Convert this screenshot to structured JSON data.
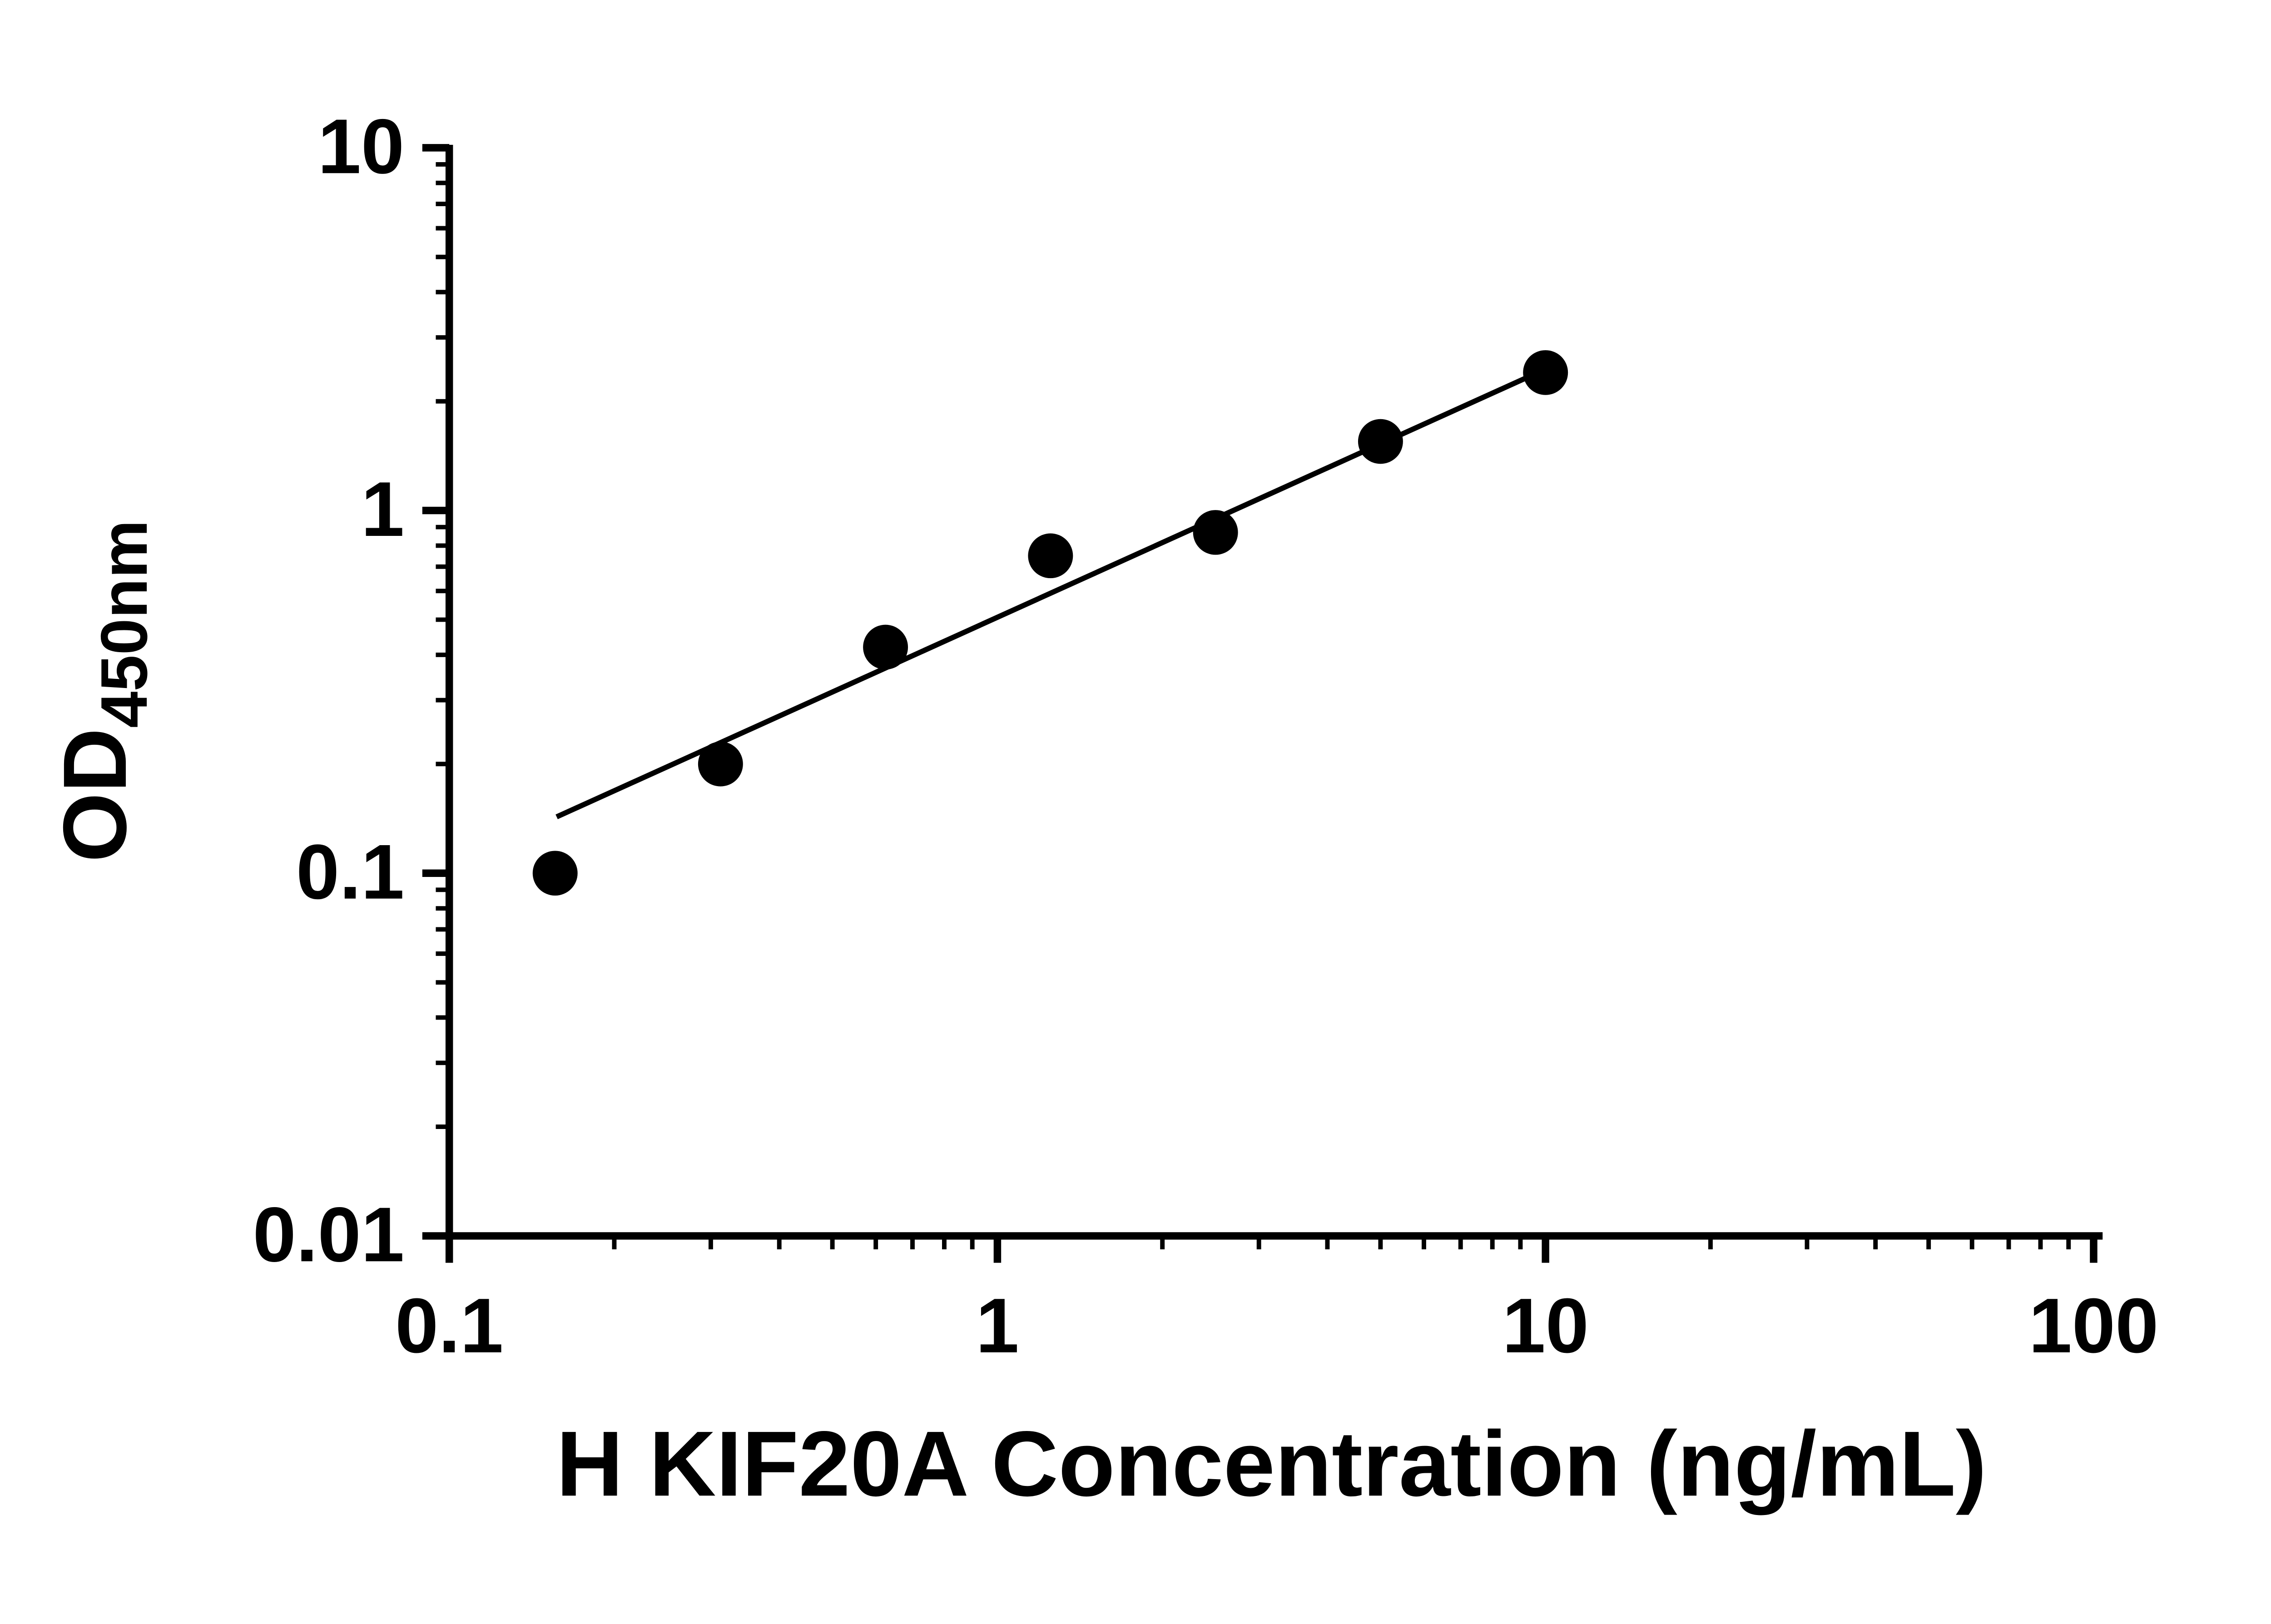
{
  "chart_data": {
    "type": "scatter",
    "title": "",
    "xlabel": "H KIF20A Concentration (ng/mL)",
    "ylabel_main": "OD",
    "ylabel_sub": "450nm",
    "x_scale": "log",
    "y_scale": "log",
    "xlim": [
      0.1,
      100
    ],
    "ylim": [
      0.01,
      10
    ],
    "grid": false,
    "legend": "none",
    "x_ticks": [
      {
        "value": 0.1,
        "label": "0.1"
      },
      {
        "value": 1,
        "label": "1"
      },
      {
        "value": 10,
        "label": "10"
      },
      {
        "value": 100,
        "label": "100"
      }
    ],
    "y_ticks": [
      {
        "value": 0.01,
        "label": "0.01"
      },
      {
        "value": 0.1,
        "label": "0.1"
      },
      {
        "value": 1,
        "label": "1"
      },
      {
        "value": 10,
        "label": "10"
      }
    ],
    "minor_ticks": true,
    "points": [
      {
        "x": 0.156,
        "y": 0.1
      },
      {
        "x": 0.3125,
        "y": 0.2
      },
      {
        "x": 0.625,
        "y": 0.42
      },
      {
        "x": 1.25,
        "y": 0.75
      },
      {
        "x": 2.5,
        "y": 0.87
      },
      {
        "x": 5,
        "y": 1.55
      },
      {
        "x": 10,
        "y": 2.4
      }
    ],
    "trend_line": {
      "x1": 0.157,
      "y1": 0.143,
      "x2": 10.4,
      "y2": 2.52
    },
    "marker_color": "#000000",
    "line_color": "#000000",
    "axis_color": "#000000",
    "background": "#ffffff"
  }
}
